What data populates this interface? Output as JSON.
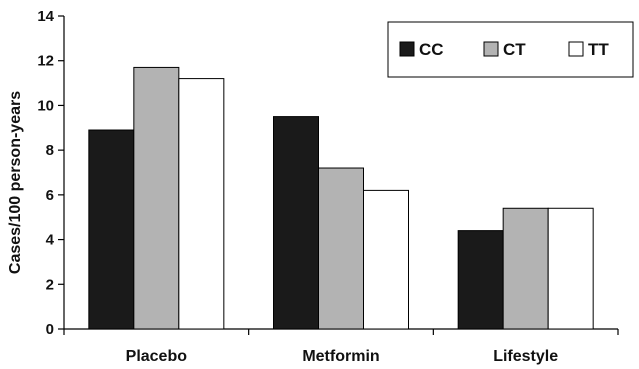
{
  "chart_data": {
    "type": "bar",
    "ylabel": "Cases/100 person-years",
    "xlabel": "",
    "ylim": [
      0,
      14
    ],
    "yticks": [
      0,
      2,
      4,
      6,
      8,
      10,
      12,
      14
    ],
    "categories": [
      "Placebo",
      "Metformin",
      "Lifestyle"
    ],
    "series": [
      {
        "name": "CC",
        "values": [
          8.9,
          9.5,
          4.4
        ],
        "color": "#1a1a1a"
      },
      {
        "name": "CT",
        "values": [
          11.7,
          7.2,
          5.4
        ],
        "color": "#b3b3b3"
      },
      {
        "name": "TT",
        "values": [
          11.2,
          6.2,
          5.4
        ],
        "color": "#ffffff"
      }
    ],
    "legend_position": "top-right",
    "grid": false
  }
}
